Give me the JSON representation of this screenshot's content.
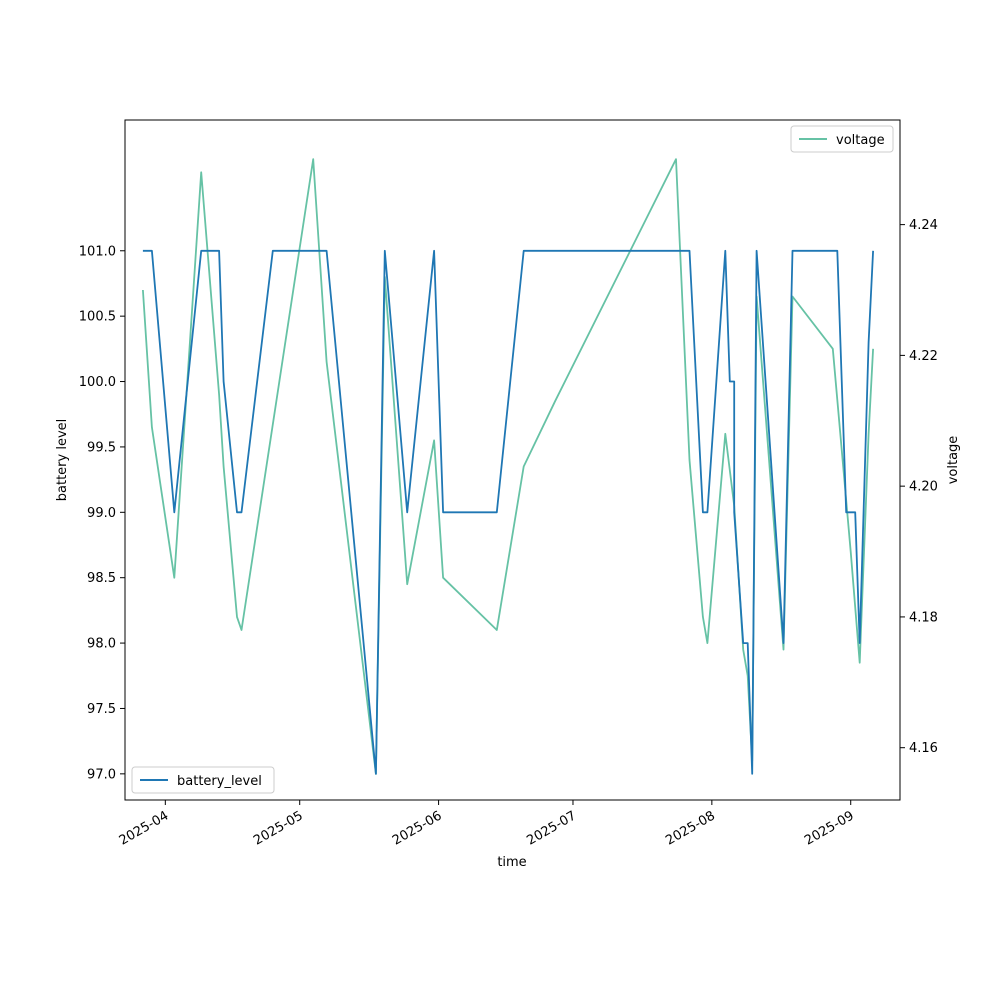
{
  "chart_data": {
    "type": "line",
    "xlabel": "time",
    "ylabel_left": "battery level",
    "ylabel_right": "voltage",
    "x_ticks": [
      "2025-04",
      "2025-05",
      "2025-06",
      "2025-07",
      "2025-08",
      "2025-09"
    ],
    "y_left_ticks": [
      "97.0",
      "97.5",
      "98.0",
      "98.5",
      "99.0",
      "99.5",
      "100.0",
      "100.5",
      "101.0"
    ],
    "y_right_ticks": [
      "4.16",
      "4.18",
      "4.20",
      "4.22",
      "4.24"
    ],
    "y_left_range": [
      96.8,
      102.0
    ],
    "y_right_range": [
      4.152,
      4.256
    ],
    "legend_left_position": "lower-left",
    "legend_right_position": "upper-right",
    "grid": false,
    "series": [
      {
        "name": "battery_level",
        "axis": "left",
        "color": "#1f77b4",
        "points": [
          [
            "2025-03-27",
            101
          ],
          [
            "2025-03-29",
            101
          ],
          [
            "2025-04-03",
            99
          ],
          [
            "2025-04-09",
            101
          ],
          [
            "2025-04-13",
            101
          ],
          [
            "2025-04-14",
            100
          ],
          [
            "2025-04-17",
            99
          ],
          [
            "2025-04-18",
            99
          ],
          [
            "2025-04-25",
            101
          ],
          [
            "2025-05-07",
            101
          ],
          [
            "2025-05-18",
            97
          ],
          [
            "2025-05-20",
            101
          ],
          [
            "2025-05-25",
            99
          ],
          [
            "2025-05-31",
            101
          ],
          [
            "2025-06-02",
            99
          ],
          [
            "2025-06-14",
            99
          ],
          [
            "2025-06-20",
            101
          ],
          [
            "2025-07-27",
            101
          ],
          [
            "2025-07-30",
            99
          ],
          [
            "2025-07-31",
            99
          ],
          [
            "2025-08-04",
            101
          ],
          [
            "2025-08-05",
            100
          ],
          [
            "2025-08-06",
            100
          ],
          [
            "2025-08-06",
            99
          ],
          [
            "2025-08-08",
            98
          ],
          [
            "2025-08-09",
            98
          ],
          [
            "2025-08-10",
            97
          ],
          [
            "2025-08-11",
            101
          ],
          [
            "2025-08-17",
            98
          ],
          [
            "2025-08-19",
            101
          ],
          [
            "2025-08-29",
            101
          ],
          [
            "2025-08-31",
            99
          ],
          [
            "2025-09-02",
            99
          ],
          [
            "2025-09-03",
            98
          ],
          [
            "2025-09-05",
            100.3
          ],
          [
            "2025-09-06",
            101
          ]
        ]
      },
      {
        "name": "voltage",
        "axis": "right",
        "color": "#66c2a5",
        "points": [
          [
            "2025-03-27",
            4.23
          ],
          [
            "2025-03-29",
            4.209
          ],
          [
            "2025-04-03",
            4.186
          ],
          [
            "2025-04-09",
            4.248
          ],
          [
            "2025-04-13",
            4.214
          ],
          [
            "2025-04-14",
            4.203
          ],
          [
            "2025-04-17",
            4.18
          ],
          [
            "2025-04-18",
            4.178
          ],
          [
            "2025-05-04",
            4.25
          ],
          [
            "2025-05-07",
            4.219
          ],
          [
            "2025-05-18",
            4.156
          ],
          [
            "2025-05-20",
            4.232
          ],
          [
            "2025-05-25",
            4.185
          ],
          [
            "2025-05-31",
            4.207
          ],
          [
            "2025-06-02",
            4.186
          ],
          [
            "2025-06-14",
            4.178
          ],
          [
            "2025-06-20",
            4.203
          ],
          [
            "2025-06-27",
            4.213
          ],
          [
            "2025-07-24",
            4.25
          ],
          [
            "2025-07-27",
            4.204
          ],
          [
            "2025-07-30",
            4.18
          ],
          [
            "2025-07-31",
            4.176
          ],
          [
            "2025-08-04",
            4.208
          ],
          [
            "2025-08-06",
            4.197
          ],
          [
            "2025-08-08",
            4.175
          ],
          [
            "2025-08-09",
            4.171
          ],
          [
            "2025-08-10",
            4.158
          ],
          [
            "2025-08-11",
            4.229
          ],
          [
            "2025-08-17",
            4.175
          ],
          [
            "2025-08-19",
            4.229
          ],
          [
            "2025-08-28",
            4.221
          ],
          [
            "2025-09-01",
            4.19
          ],
          [
            "2025-09-03",
            4.173
          ],
          [
            "2025-09-05",
            4.208
          ],
          [
            "2025-09-06",
            4.221
          ]
        ]
      }
    ]
  }
}
